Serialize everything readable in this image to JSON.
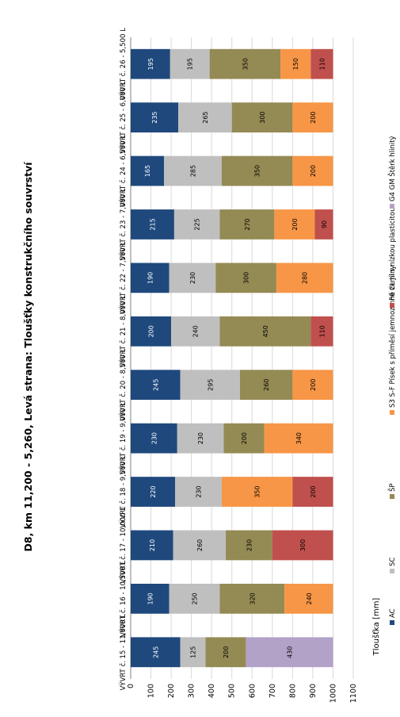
{
  "chart_data": {
    "type": "bar",
    "stacked": true,
    "orientation": "horizontal",
    "title": "D8, km 11,200 - 5,260, Levá strana: Tloušťky konstrukčního souvrství",
    "xlabel": "",
    "ylabel": "Tloušťka [mm]",
    "ylim": [
      0,
      1100
    ],
    "yticks": [
      "0",
      "100",
      "200",
      "300",
      "400",
      "500",
      "600",
      "700",
      "800",
      "900",
      "1000",
      "1100"
    ],
    "grid": true,
    "legend_position": "bottom",
    "categories": [
      "VÝVRT č. 15 - 11,000 L",
      "VÝVRT č. 16 - 10,500 L",
      "VÝVRT č. 17 - 10,000 L",
      "VÝVRT č. 18 - 9,500 L",
      "VÝVRT č. 19 - 9,000 L",
      "VÝVRT č. 20 - 8,500 L",
      "VÝVRT č. 21 - 8,000 L",
      "VÝVRT č. 22 - 7,500 L",
      "VÝVRT č. 23 - 7,000 L",
      "VÝVRT č. 24 - 6,500 L",
      "VÝVRT č. 25 - 6,000 L",
      "VÝVRT č. 26 - 5,500 L"
    ],
    "series": [
      {
        "name": "AC",
        "color": "#1f497d",
        "text_color": "#ffffff",
        "values": [
          245,
          190,
          210,
          220,
          230,
          245,
          200,
          190,
          215,
          165,
          235,
          195
        ]
      },
      {
        "name": "SC",
        "color": "#bfbfbf",
        "text_color": "#000000",
        "values": [
          125,
          250,
          260,
          230,
          230,
          295,
          240,
          230,
          225,
          285,
          265,
          195
        ]
      },
      {
        "name": "ŠP",
        "color": "#948a54",
        "text_color": "#000000",
        "values": [
          200,
          320,
          230,
          0,
          200,
          260,
          450,
          300,
          270,
          350,
          300,
          350
        ]
      },
      {
        "name": "S3 S-F Písek s příměsí jemnozrnné zeminy",
        "color": "#f79646",
        "text_color": "#000000",
        "values": [
          0,
          240,
          0,
          350,
          340,
          200,
          0,
          280,
          200,
          200,
          200,
          150
        ]
      },
      {
        "name": "F6 CL Jíl s nízkou plasticitou",
        "color": "#c0504d",
        "text_color": "#000000",
        "values": [
          0,
          0,
          300,
          200,
          0,
          0,
          110,
          0,
          90,
          0,
          0,
          110
        ]
      },
      {
        "name": "G4 GM Štěrk hlinitý",
        "color": "#b3a2c7",
        "text_color": "#000000",
        "values": [
          430,
          0,
          0,
          0,
          0,
          0,
          0,
          0,
          0,
          0,
          0,
          0
        ]
      }
    ]
  }
}
